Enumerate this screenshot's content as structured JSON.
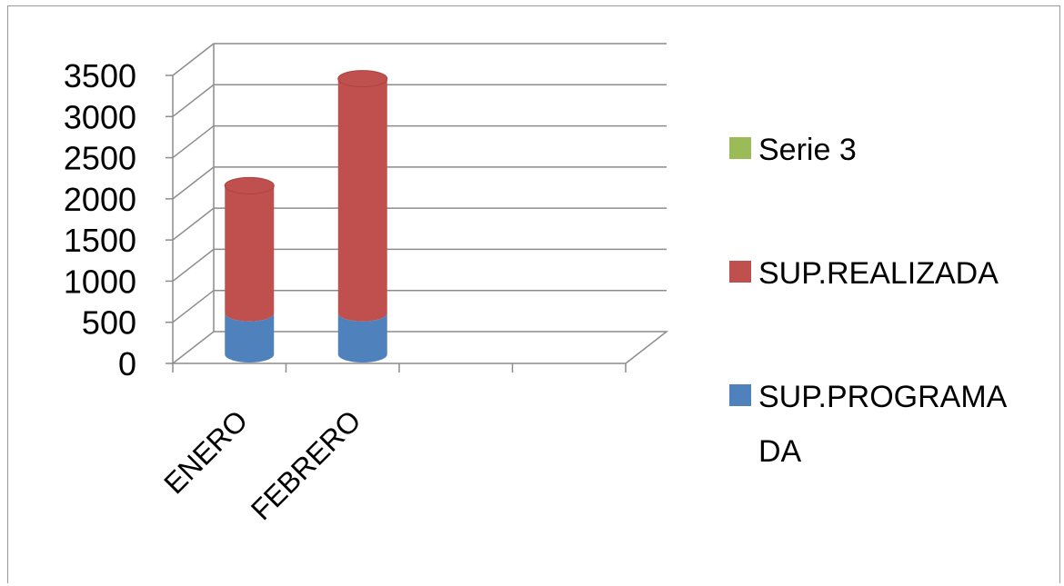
{
  "chart_data": {
    "type": "bar",
    "stacked": true,
    "three_d": true,
    "categories": [
      "ENERO",
      "FEBRERO"
    ],
    "slots": 4,
    "series": [
      {
        "name": "SUP.PROGRAMADA",
        "values": [
          500,
          500
        ],
        "color": "#4f81bd"
      },
      {
        "name": "SUP.REALIZADA",
        "values": [
          1550,
          2850
        ],
        "color": "#c0504d"
      },
      {
        "name": "Serie 3",
        "values": [
          0,
          0
        ],
        "color": "#9bbb59"
      }
    ],
    "yticks": [
      "0",
      "500",
      "1000",
      "1500",
      "2000",
      "2500",
      "3000",
      "3500"
    ],
    "ylim": [
      0,
      3500
    ],
    "grid": true,
    "legend_position": "right",
    "legend_labels": {
      "serie3": "Serie 3",
      "realizada": "SUP.REALIZADA",
      "programada_line1": "SUP.PROGRAMA",
      "programada_line2": "DA"
    }
  }
}
